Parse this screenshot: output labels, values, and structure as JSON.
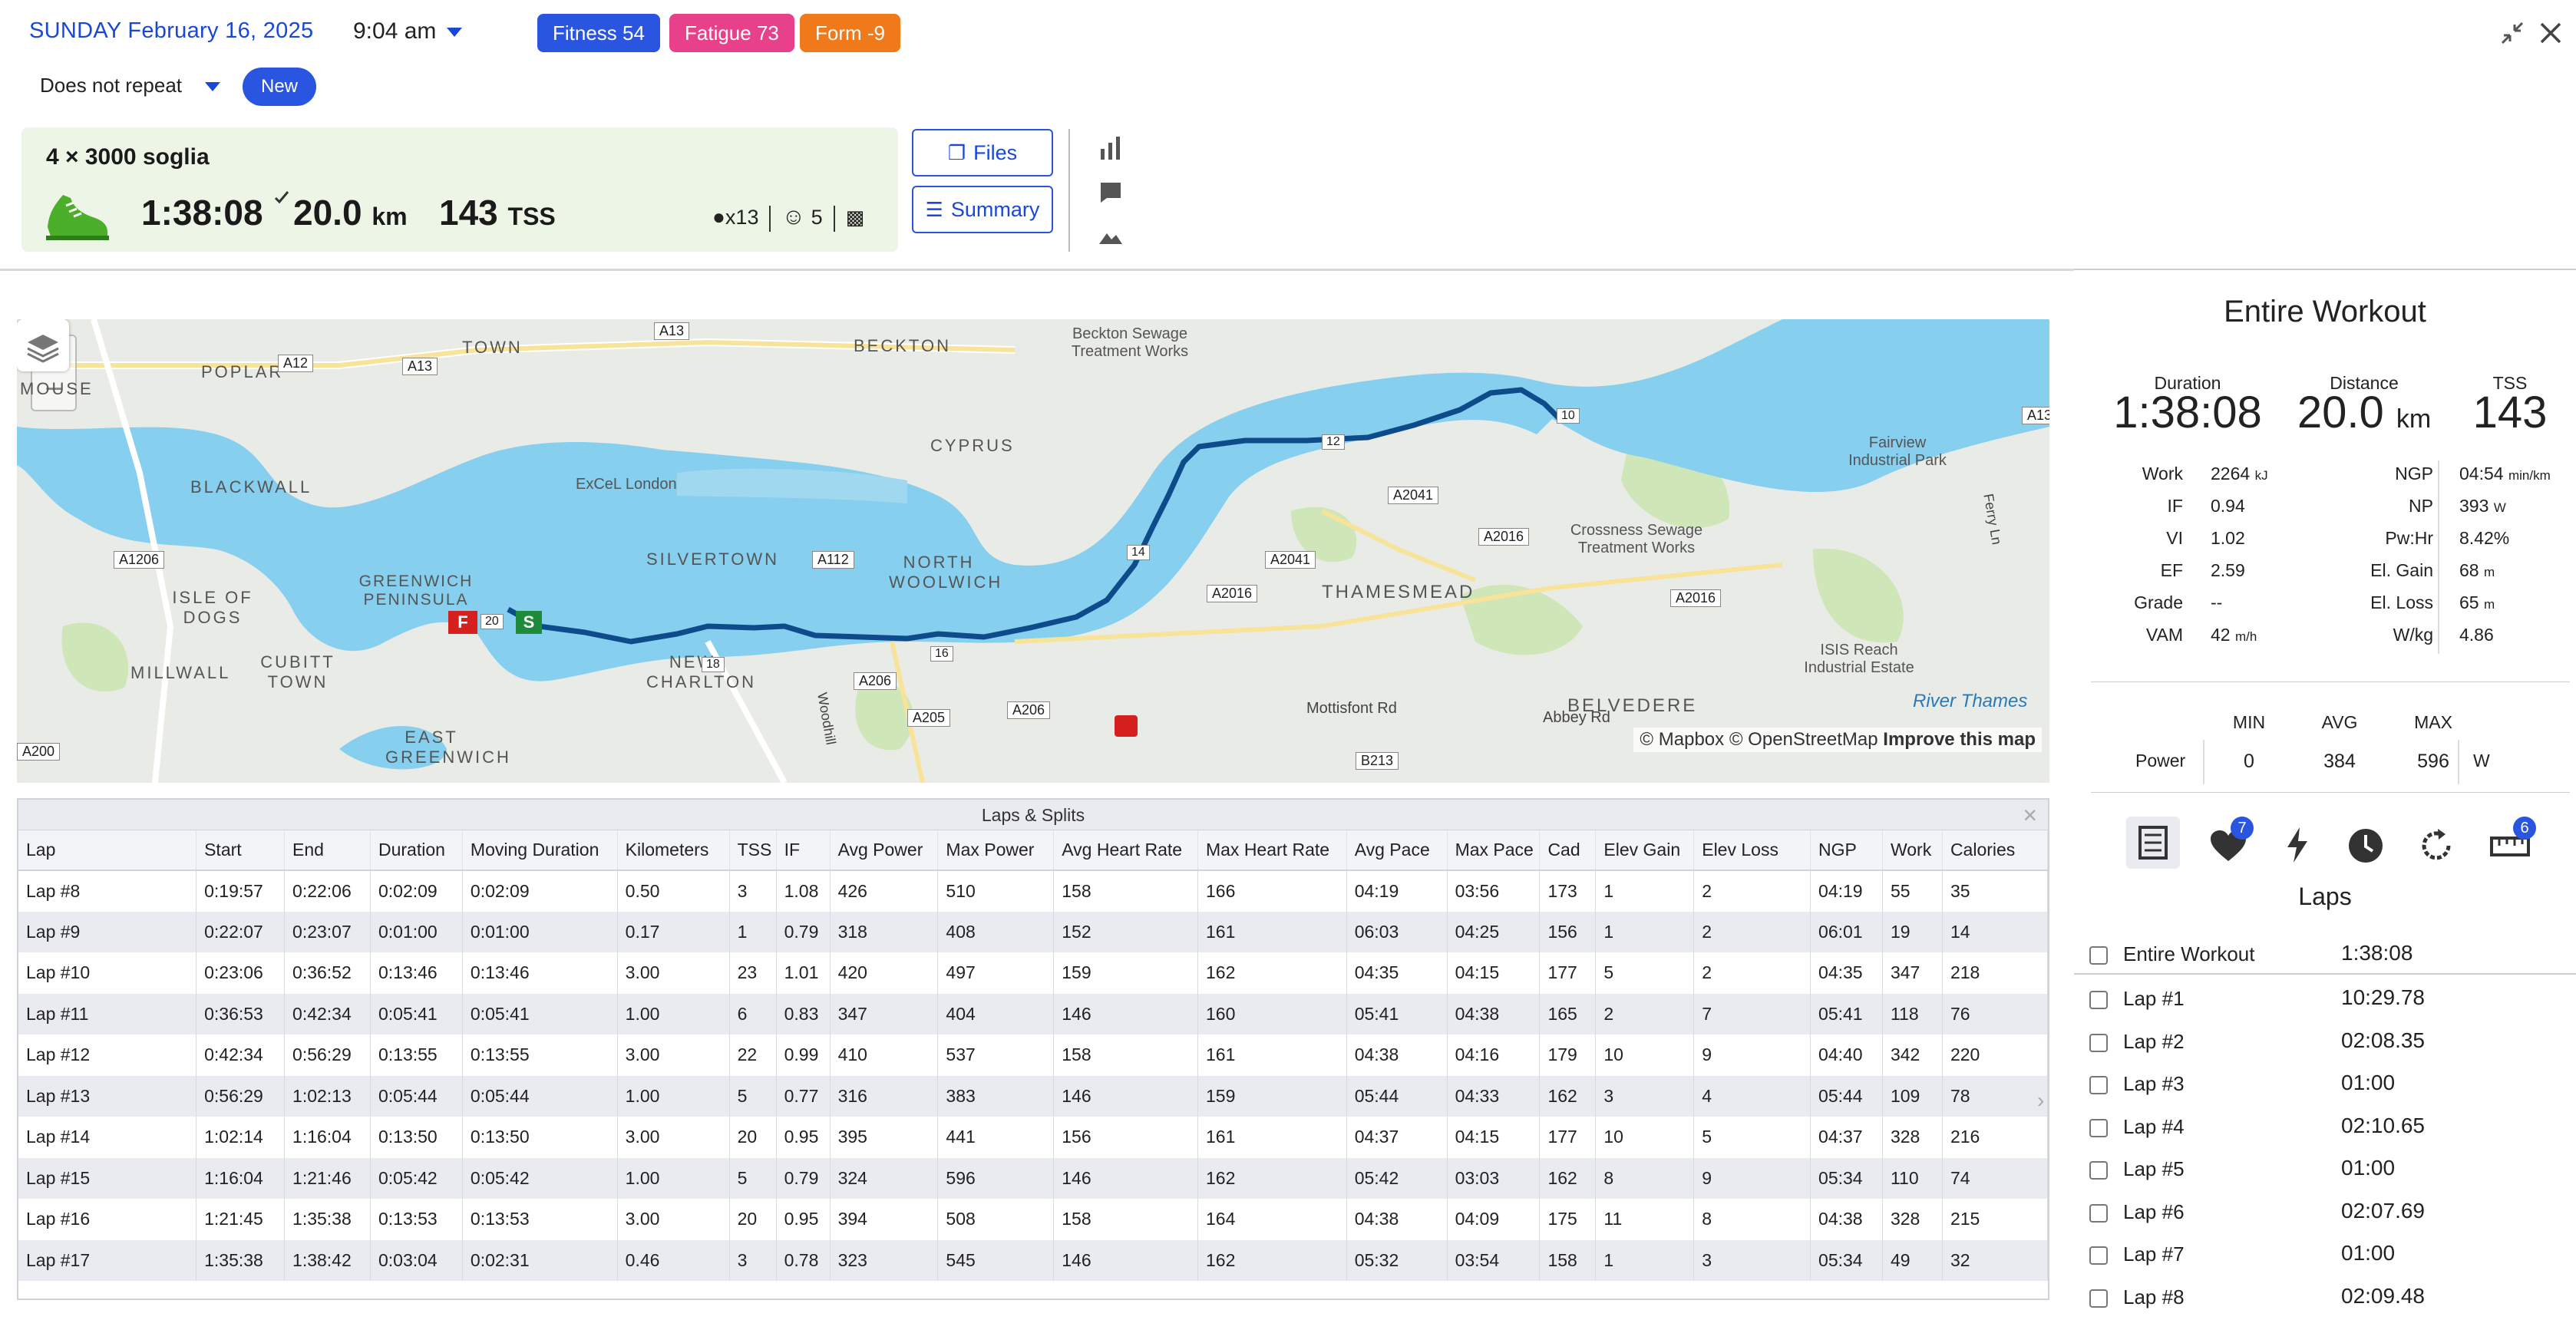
{
  "header": {
    "date": "SUNDAY February 16, 2025",
    "time": "9:04 am",
    "fitness": "Fitness 54",
    "fatigue": "Fatigue 73",
    "form": "Form -9",
    "repeat": "Does not repeat",
    "new_label": "New",
    "colors": {
      "fitness": "#2a55e0",
      "fatigue": "#e8408a",
      "form": "#f07a1a"
    }
  },
  "workout": {
    "title": "4 × 3000 soglia",
    "duration": "1:38:08",
    "distance": "20.0",
    "distance_unit": "km",
    "tss": "143",
    "tss_unit": "TSS",
    "medals": "x13",
    "feel": "5"
  },
  "buttons": {
    "files": "Files",
    "summary": "Summary"
  },
  "map": {
    "attribution_mapbox": "© Mapbox",
    "attribution_osm": "© OpenStreetMap",
    "improve": "Improve this map",
    "labels": [
      "TOWN",
      "BECKTON",
      "POPLAR",
      "MOUSE",
      "CYPRUS",
      "ExCeL London",
      "BLACKWALL",
      "SILVERTOWN",
      "NORTH WOOLWICH",
      "GREENWICH PENINSULA",
      "ISLE OF DOGS",
      "CUBITT TOWN",
      "MILLWALL",
      "NEW CHARLTON",
      "EAST GREENWICH",
      "THAMESMEAD",
      "BELVEDERE",
      "Fairview Industrial Park",
      "Crossness Sewage Treatment Works",
      "ISIS Reach Industrial Estate",
      "River Thames",
      "Beckton Sewage Treatment Works",
      "Mottisfont Rd",
      "Abbey Rd",
      "Woodhill",
      "Ferry Ln"
    ],
    "roads": [
      "A12",
      "A13",
      "A13",
      "A1206",
      "A112",
      "A206",
      "A205",
      "A206",
      "A2041",
      "A2041",
      "A2016",
      "A2016",
      "A2016",
      "B213",
      "A200",
      "A13"
    ],
    "markers": {
      "finish": "F",
      "start": "S",
      "km": [
        "10",
        "12",
        "14",
        "16",
        "18",
        "20"
      ]
    }
  },
  "laps_table": {
    "caption": "Laps & Splits",
    "columns": [
      "Lap",
      "Start",
      "End",
      "Duration",
      "Moving Duration",
      "Kilometers",
      "TSS",
      "IF",
      "Avg Power",
      "Max Power",
      "Avg Heart Rate",
      "Max Heart Rate",
      "Avg Pace",
      "Max Pace",
      "Cad",
      "Elev Gain",
      "Elev Loss",
      "NGP",
      "Work",
      "Calories"
    ],
    "rows": [
      [
        "Lap #8",
        "0:19:57",
        "0:22:06",
        "0:02:09",
        "0:02:09",
        "0.50",
        "3",
        "1.08",
        "426",
        "510",
        "158",
        "166",
        "04:19",
        "03:56",
        "173",
        "1",
        "2",
        "04:19",
        "55",
        "35"
      ],
      [
        "Lap #9",
        "0:22:07",
        "0:23:07",
        "0:01:00",
        "0:01:00",
        "0.17",
        "1",
        "0.79",
        "318",
        "408",
        "152",
        "161",
        "06:03",
        "04:25",
        "156",
        "1",
        "2",
        "06:01",
        "19",
        "14"
      ],
      [
        "Lap #10",
        "0:23:06",
        "0:36:52",
        "0:13:46",
        "0:13:46",
        "3.00",
        "23",
        "1.01",
        "420",
        "497",
        "159",
        "162",
        "04:35",
        "04:15",
        "177",
        "5",
        "2",
        "04:35",
        "347",
        "218"
      ],
      [
        "Lap #11",
        "0:36:53",
        "0:42:34",
        "0:05:41",
        "0:05:41",
        "1.00",
        "6",
        "0.83",
        "347",
        "404",
        "146",
        "160",
        "05:41",
        "04:38",
        "165",
        "2",
        "7",
        "05:41",
        "118",
        "76"
      ],
      [
        "Lap #12",
        "0:42:34",
        "0:56:29",
        "0:13:55",
        "0:13:55",
        "3.00",
        "22",
        "0.99",
        "410",
        "537",
        "158",
        "161",
        "04:38",
        "04:16",
        "179",
        "10",
        "9",
        "04:40",
        "342",
        "220"
      ],
      [
        "Lap #13",
        "0:56:29",
        "1:02:13",
        "0:05:44",
        "0:05:44",
        "1.00",
        "5",
        "0.77",
        "316",
        "383",
        "146",
        "159",
        "05:44",
        "04:33",
        "162",
        "3",
        "4",
        "05:44",
        "109",
        "78"
      ],
      [
        "Lap #14",
        "1:02:14",
        "1:16:04",
        "0:13:50",
        "0:13:50",
        "3.00",
        "20",
        "0.95",
        "395",
        "441",
        "156",
        "161",
        "04:37",
        "04:15",
        "177",
        "10",
        "5",
        "04:37",
        "328",
        "216"
      ],
      [
        "Lap #15",
        "1:16:04",
        "1:21:46",
        "0:05:42",
        "0:05:42",
        "1.00",
        "5",
        "0.79",
        "324",
        "596",
        "146",
        "162",
        "05:42",
        "03:03",
        "162",
        "8",
        "9",
        "05:34",
        "110",
        "74"
      ],
      [
        "Lap #16",
        "1:21:45",
        "1:35:38",
        "0:13:53",
        "0:13:53",
        "3.00",
        "20",
        "0.95",
        "394",
        "508",
        "158",
        "164",
        "04:38",
        "04:09",
        "175",
        "11",
        "8",
        "04:38",
        "328",
        "215"
      ],
      [
        "Lap #17",
        "1:35:38",
        "1:38:42",
        "0:03:04",
        "0:02:31",
        "0.46",
        "3",
        "0.78",
        "323",
        "545",
        "146",
        "162",
        "05:32",
        "03:54",
        "158",
        "1",
        "3",
        "05:34",
        "49",
        "32"
      ]
    ]
  },
  "entire": {
    "title": "Entire Workout",
    "duration_label": "Duration",
    "duration": "1:38:08",
    "distance_label": "Distance",
    "distance": "20.0",
    "distance_unit": "km",
    "tss_label": "TSS",
    "tss": "143",
    "metrics_left": [
      {
        "label": "Work",
        "value": "2264",
        "unit": "kJ"
      },
      {
        "label": "IF",
        "value": "0.94",
        "unit": ""
      },
      {
        "label": "VI",
        "value": "1.02",
        "unit": ""
      },
      {
        "label": "EF",
        "value": "2.59",
        "unit": ""
      },
      {
        "label": "Grade",
        "value": "--",
        "unit": ""
      },
      {
        "label": "VAM",
        "value": "42",
        "unit": "m/h"
      }
    ],
    "metrics_right": [
      {
        "label": "NGP",
        "value": "04:54",
        "unit": "min/km"
      },
      {
        "label": "NP",
        "value": "393",
        "unit": "W"
      },
      {
        "label": "Pw:Hr",
        "value": "8.42%",
        "unit": ""
      },
      {
        "label": "El. Gain",
        "value": "68",
        "unit": "m"
      },
      {
        "label": "El. Loss",
        "value": "65",
        "unit": "m"
      },
      {
        "label": "W/kg",
        "value": "4.86",
        "unit": ""
      }
    ],
    "power": {
      "min_label": "MIN",
      "avg_label": "AVG",
      "max_label": "MAX",
      "label": "Power",
      "min": "0",
      "avg": "384",
      "max": "596",
      "unit": "W"
    },
    "badges": {
      "heart": "7",
      "ruler": "6"
    },
    "laps_heading": "Laps",
    "laps": [
      {
        "label": "Entire Workout",
        "time": "1:38:08"
      },
      {
        "label": "Lap #1",
        "time": "10:29.78"
      },
      {
        "label": "Lap #2",
        "time": "02:08.35"
      },
      {
        "label": "Lap #3",
        "time": "01:00"
      },
      {
        "label": "Lap #4",
        "time": "02:10.65"
      },
      {
        "label": "Lap #5",
        "time": "01:00"
      },
      {
        "label": "Lap #6",
        "time": "02:07.69"
      },
      {
        "label": "Lap #7",
        "time": "01:00"
      },
      {
        "label": "Lap #8",
        "time": "02:09.48"
      }
    ]
  }
}
